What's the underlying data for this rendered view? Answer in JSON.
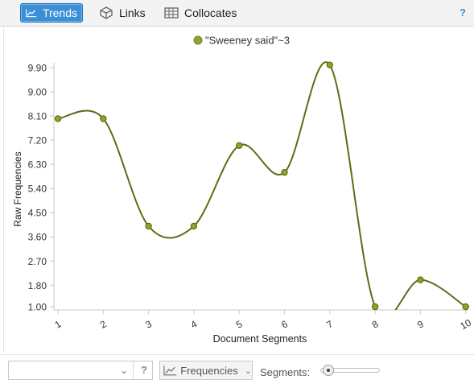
{
  "toolbar": {
    "tabs": [
      {
        "label": "Trends",
        "icon": "line-chart-icon",
        "active": true
      },
      {
        "label": "Links",
        "icon": "network-icon",
        "active": false
      },
      {
        "label": "Collocates",
        "icon": "table-icon",
        "active": false
      }
    ],
    "help": "?"
  },
  "chart_data": {
    "type": "line",
    "x": [
      "1",
      "2",
      "3",
      "4",
      "5",
      "6",
      "7",
      "8",
      "9",
      "10"
    ],
    "series": [
      {
        "name": "\"Sweeney said\"~3",
        "values": [
          8,
          8,
          4,
          4,
          7,
          6,
          10,
          1,
          2,
          1
        ],
        "color": "#5b6e14",
        "marker_color": "#8fa52a"
      }
    ],
    "xlabel": "Document Segments",
    "ylabel": "Raw Frequencies",
    "yticks": [
      "1.00",
      "1.80",
      "2.70",
      "3.60",
      "4.50",
      "5.40",
      "6.30",
      "7.20",
      "8.10",
      "9.00",
      "9.90"
    ],
    "ylim": [
      1,
      9.9
    ],
    "legend_position": "top-center",
    "grid": false
  },
  "bottom": {
    "search_placeholder": "",
    "help": "?",
    "frequencies_label": "Frequencies",
    "segments_label": "Segments:",
    "segments_value": 10
  }
}
